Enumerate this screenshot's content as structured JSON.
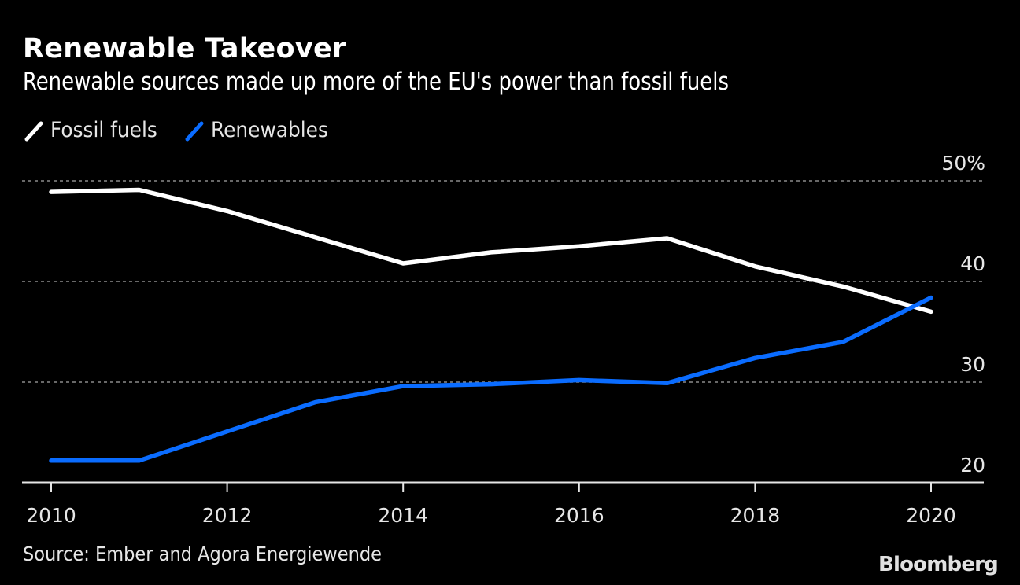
{
  "header": {
    "title": "Renewable Takeover",
    "subtitle": "Renewable sources made up more of the EU's power than fossil fuels"
  },
  "footer": {
    "source": "Source: Ember and Agora Energiewende",
    "brand": "Bloomberg"
  },
  "chart_data": {
    "type": "line",
    "title": "Renewable Takeover",
    "subtitle": "Renewable sources made up more of the EU's power than fossil fuels",
    "xlabel": "",
    "ylabel": "",
    "x": [
      2010,
      2011,
      2012,
      2013,
      2014,
      2015,
      2016,
      2017,
      2018,
      2019,
      2020
    ],
    "series": [
      {
        "name": "Fossil fuels",
        "color": "#ffffff",
        "values": [
          48.9,
          49.1,
          47.0,
          44.4,
          41.8,
          42.9,
          43.5,
          44.3,
          41.5,
          39.5,
          37.0
        ]
      },
      {
        "name": "Renewables",
        "color": "#0a6cff",
        "values": [
          22.2,
          22.2,
          25.1,
          28.0,
          29.6,
          29.8,
          30.2,
          29.9,
          32.4,
          34.0,
          38.4
        ]
      }
    ],
    "xlim": [
      2010,
      2020
    ],
    "ylim": [
      20,
      50
    ],
    "x_ticks": [
      "2010",
      "2012",
      "2014",
      "2016",
      "2018",
      "2020"
    ],
    "y_ticks": [
      "20",
      "30",
      "40",
      "50%"
    ],
    "y_tick_values": [
      20,
      30,
      40,
      50
    ],
    "y_axis_side": "right",
    "grid": true,
    "grid_style": "dotted horizontal",
    "legend_position": "top-left",
    "source": "Source: Ember and Agora Energiewende"
  }
}
